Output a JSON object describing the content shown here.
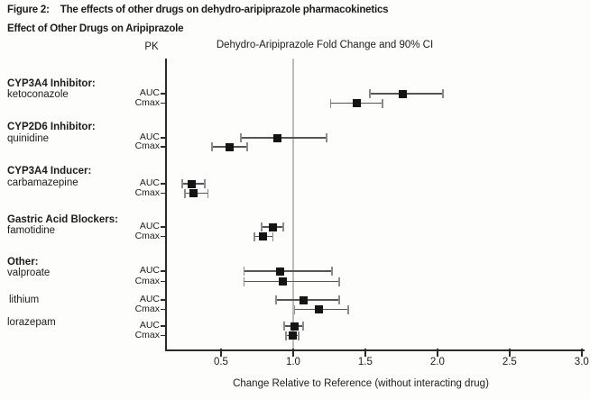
{
  "figure": {
    "title_label": "Figure 2:",
    "title_text": "The effects of other drugs on dehydro-aripiprazole pharmacokinetics",
    "subtitle": "Effect of Other Drugs on Aripiprazole"
  },
  "chart_data": {
    "type": "forest",
    "pk_column_header": "PK",
    "plot_header": "Dehydro-Aripiprazole Fold Change and 90% CI",
    "xlabel": "Change Relative to Reference (without interacting drug)",
    "x_ticks": [
      0.5,
      1.0,
      1.5,
      2.0,
      2.5,
      3.0
    ],
    "xlim": [
      0.125,
      3.02
    ],
    "reference_line": 1.0,
    "grid": false,
    "groups": [
      {
        "header": "CYP3A4 Inhibitor:",
        "drug": "ketoconazole",
        "rows": [
          {
            "metric": "AUC",
            "value": 1.76,
            "lo": 1.53,
            "hi": 2.04
          },
          {
            "metric": "Cmax",
            "value": 1.44,
            "lo": 1.26,
            "hi": 1.62
          }
        ]
      },
      {
        "header": "CYP2D6 Inhibitor:",
        "drug": "quinidine",
        "rows": [
          {
            "metric": "AUC",
            "value": 0.89,
            "lo": 0.64,
            "hi": 1.23
          },
          {
            "metric": "Cmax",
            "value": 0.56,
            "lo": 0.44,
            "hi": 0.68
          }
        ]
      },
      {
        "header": "CYP3A4 Inducer:",
        "drug": "carbamazepine",
        "rows": [
          {
            "metric": "AUC",
            "value": 0.3,
            "lo": 0.23,
            "hi": 0.39
          },
          {
            "metric": "Cmax",
            "value": 0.31,
            "lo": 0.25,
            "hi": 0.41
          }
        ]
      },
      {
        "header": "Gastric Acid Blockers:",
        "drug": "famotidine",
        "rows": [
          {
            "metric": "AUC",
            "value": 0.86,
            "lo": 0.78,
            "hi": 0.93
          },
          {
            "metric": "Cmax",
            "value": 0.79,
            "lo": 0.73,
            "hi": 0.86
          }
        ]
      },
      {
        "header": "Other:",
        "drug": "valproate",
        "rows": [
          {
            "metric": "AUC",
            "value": 0.91,
            "lo": 0.66,
            "hi": 1.27
          },
          {
            "metric": "Cmax",
            "value": 0.93,
            "lo": 0.66,
            "hi": 1.32
          }
        ]
      },
      {
        "header": null,
        "drug": "lithium",
        "rows": [
          {
            "metric": "AUC",
            "value": 1.07,
            "lo": 0.88,
            "hi": 1.32
          },
          {
            "metric": "Cmax",
            "value": 1.18,
            "lo": 1.01,
            "hi": 1.38
          }
        ]
      },
      {
        "header": null,
        "drug": "lorazepam",
        "rows": [
          {
            "metric": "AUC",
            "value": 1.01,
            "lo": 0.94,
            "hi": 1.07
          },
          {
            "metric": "Cmax",
            "value": 1.0,
            "lo": 0.95,
            "hi": 1.04
          }
        ]
      }
    ],
    "colors": {
      "marker": "#141414",
      "ci_line": "#555555",
      "ci_cap": "#8b8b8b",
      "axis": "#2b2b2b",
      "reference_line": "#bcbcbc"
    }
  }
}
